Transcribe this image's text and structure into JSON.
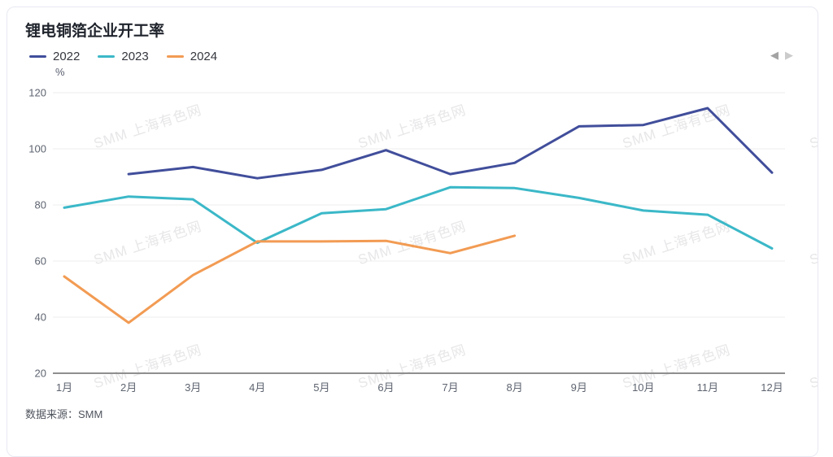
{
  "card": {
    "title": "锂电铜箔企业开工率",
    "unit_label": "%",
    "source_label": "数据来源：SMM",
    "watermark_text": "SMM 上海有色网",
    "nav": {
      "prev_icon": "◀",
      "next_icon": "▶"
    }
  },
  "chart_data": {
    "type": "line",
    "title": "锂电铜箔企业开工率",
    "ylabel": "%",
    "categories": [
      "1月",
      "2月",
      "3月",
      "4月",
      "5月",
      "6月",
      "7月",
      "8月",
      "9月",
      "10月",
      "11月",
      "12月"
    ],
    "series": [
      {
        "name": "2022",
        "color": "#414E9B",
        "values": [
          null,
          91,
          93.5,
          89.5,
          92.5,
          99.5,
          91,
          95,
          108,
          108.5,
          114.5,
          91.5
        ]
      },
      {
        "name": "2023",
        "color": "#3BB8C8",
        "values": [
          79,
          83,
          82,
          66.5,
          77,
          78.5,
          86.3,
          86,
          82.5,
          78,
          76.5,
          64.5
        ]
      },
      {
        "name": "2024",
        "color": "#F29B53",
        "values": [
          54.5,
          38,
          55,
          67,
          67,
          67.2,
          62.8,
          69
        ]
      }
    ],
    "ylim": [
      20,
      120
    ],
    "yticks": [
      120,
      100,
      80,
      60,
      40,
      20
    ],
    "grid": true,
    "legend_position": "top-left",
    "source": "SMM"
  }
}
